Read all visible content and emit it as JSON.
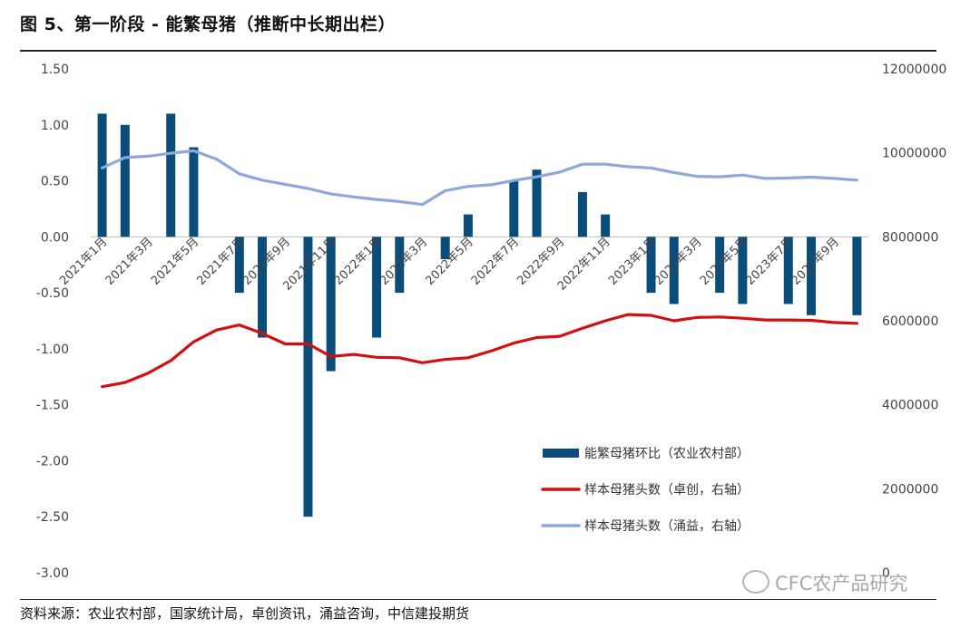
{
  "title": "图 5、第一阶段 - 能繁母猪（推断中长期出栏）",
  "source": "资料来源：农业农村部，国家统计局，卓创资讯，涌益咨询，中信建投期货",
  "watermark": "CFC农产品研究",
  "chart_data": {
    "type": "bar+line",
    "x": [
      "2021年1月",
      "2021年2月",
      "2021年3月",
      "2021年4月",
      "2021年5月",
      "2021年6月",
      "2021年7月",
      "2021年8月",
      "2021年9月",
      "2021年10月",
      "2021年11月",
      "2021年12月",
      "2022年1月",
      "2022年2月",
      "2022年3月",
      "2022年4月",
      "2022年5月",
      "2022年6月",
      "2022年7月",
      "2022年8月",
      "2022年9月",
      "2022年10月",
      "2022年11月",
      "2022年12月",
      "2023年1月",
      "2023年2月",
      "2023年3月",
      "2023年4月",
      "2023年5月",
      "2023年6月",
      "2023年7月",
      "2023年8月",
      "2023年9月",
      "2023年10月"
    ],
    "x_tick_labels": [
      "2021年1月",
      "2021年3月",
      "2021年5月",
      "2021年7月",
      "2021年9月",
      "2021年11月",
      "2022年1月",
      "2022年3月",
      "2022年5月",
      "2022年7月",
      "2022年9月",
      "2022年11月",
      "2023年1月",
      "2023年3月",
      "2023年5月",
      "2023年7月",
      "2023年9月"
    ],
    "y_left": {
      "lim": [
        -3.0,
        1.5
      ],
      "ticks": [
        "1.50",
        "1.00",
        "0.50",
        "0.00",
        "-0.50",
        "-1.00",
        "-1.50",
        "-2.00",
        "-2.50",
        "-3.00"
      ]
    },
    "y_right": {
      "lim": [
        0,
        12000000
      ],
      "ticks": [
        "12000000",
        "10000000",
        "8000000",
        "6000000",
        "4000000",
        "2000000",
        "0"
      ]
    },
    "series": [
      {
        "name": "能繁母猪环比（农业农村部）",
        "type": "bar",
        "axis": "left",
        "color": "#0b4d7a",
        "values": [
          1.1,
          1.0,
          null,
          1.1,
          0.8,
          null,
          -0.5,
          -0.9,
          null,
          -2.5,
          -1.2,
          null,
          -0.9,
          -0.5,
          null,
          -0.2,
          0.2,
          null,
          0.5,
          0.6,
          null,
          0.4,
          0.2,
          null,
          -0.5,
          -0.6,
          null,
          -0.5,
          -0.6,
          null,
          -0.6,
          -0.7,
          null,
          -0.7
        ]
      },
      {
        "name": "样本母猪头数（卓创，右轴）",
        "type": "line",
        "axis": "right",
        "color": "#d40f12",
        "values": [
          4430000,
          4530000,
          4750000,
          5050000,
          5500000,
          5780000,
          5900000,
          5700000,
          5450000,
          5450000,
          5150000,
          5200000,
          5130000,
          5120000,
          5000000,
          5080000,
          5120000,
          5280000,
          5470000,
          5600000,
          5630000,
          5820000,
          6000000,
          6150000,
          6130000,
          6000000,
          6080000,
          6090000,
          6060000,
          6020000,
          6020000,
          6010000,
          5960000,
          5940000
        ]
      },
      {
        "name": "样本母猪头数（涌益，右轴）",
        "type": "line",
        "axis": "right",
        "color": "#8ea8dd",
        "values": [
          9640000,
          9890000,
          9920000,
          9990000,
          10050000,
          9850000,
          9500000,
          9350000,
          9250000,
          9150000,
          9020000,
          8950000,
          8890000,
          8840000,
          8770000,
          9100000,
          9200000,
          9240000,
          9340000,
          9430000,
          9540000,
          9730000,
          9730000,
          9670000,
          9640000,
          9530000,
          9440000,
          9430000,
          9470000,
          9390000,
          9400000,
          9420000,
          9390000,
          9350000
        ]
      }
    ],
    "legend_position": "lower-right",
    "grid": false
  }
}
